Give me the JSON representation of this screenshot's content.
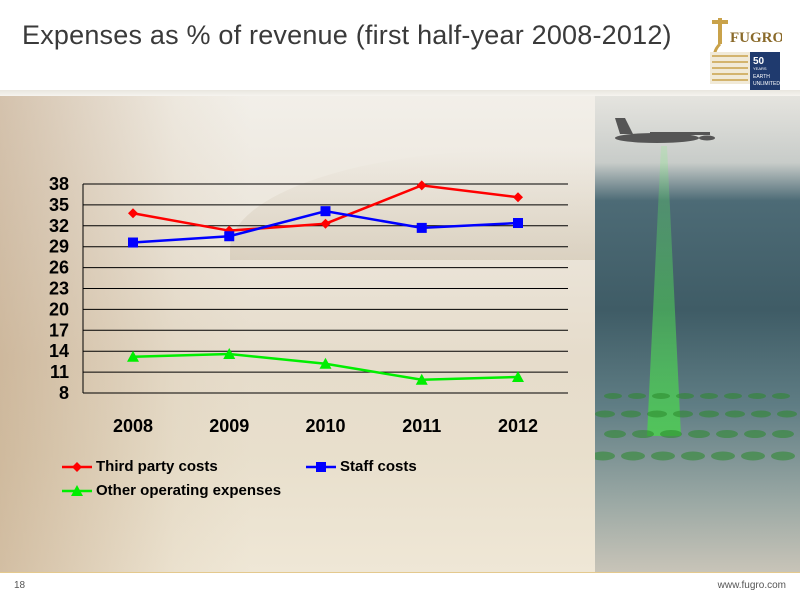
{
  "title": "Expenses as % of revenue (first half-year 2008-2012)",
  "logo": {
    "name": "FUGRO",
    "years": "50",
    "years_sub": "YEARS",
    "tagline_1": "EARTH",
    "tagline_2": "UNLIMITED"
  },
  "footer": {
    "page_number": "18",
    "website": "www.fugro.com"
  },
  "colors": {
    "third_party": "#ff0000",
    "staff": "#0000ff",
    "other": "#00ee00"
  },
  "chart_data": {
    "type": "line",
    "title": "Expenses as % of revenue (first half-year 2008-2012)",
    "categories": [
      "2008",
      "2009",
      "2010",
      "2011",
      "2012"
    ],
    "y_ticks": [
      "38",
      "35",
      "32",
      "29",
      "26",
      "23",
      "20",
      "17",
      "14",
      "11",
      "8"
    ],
    "ylim": [
      8,
      38
    ],
    "grid": true,
    "legend_position": "bottom",
    "series": [
      {
        "name": "Third party costs",
        "marker": "diamond",
        "color": "#ff0000",
        "values": [
          33.8,
          31.3,
          32.3,
          37.8,
          36.1
        ]
      },
      {
        "name": "Staff costs",
        "marker": "square",
        "color": "#0000ff",
        "values": [
          29.6,
          30.5,
          34.1,
          31.7,
          32.4
        ]
      },
      {
        "name": "Other operating expenses",
        "marker": "triangle",
        "color": "#00ee00",
        "values": [
          13.2,
          13.6,
          12.2,
          9.9,
          10.3
        ]
      }
    ]
  }
}
